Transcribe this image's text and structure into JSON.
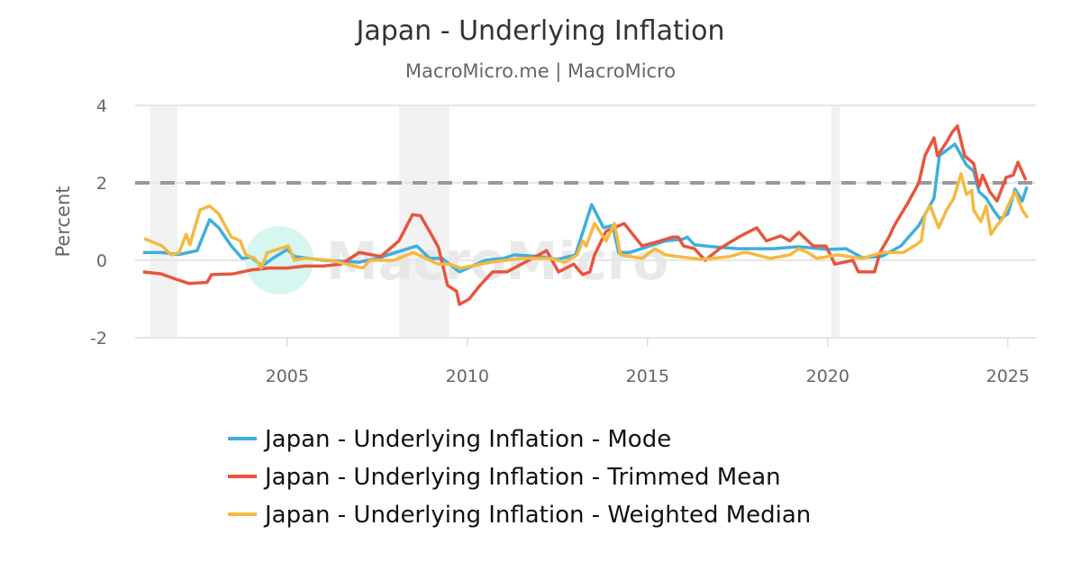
{
  "chart_data": {
    "type": "line",
    "title": "Japan - Underlying Inflation",
    "subtitle": "MacroMicro.me | MacroMicro",
    "ylabel": "Percent",
    "xlabel": "",
    "xlim": [
      2000.78,
      2025.78
    ],
    "ylim": [
      -2,
      4
    ],
    "yticks": [
      4,
      2,
      0,
      -2
    ],
    "xticks": [
      2005,
      2010,
      2015,
      2020,
      2025
    ],
    "grid": "horizontal",
    "reference_line": {
      "value": 2,
      "style": "dashed",
      "color": "#999999"
    },
    "shaded_periods": [
      [
        2001.2,
        2001.95
      ],
      [
        2008.1,
        2009.5
      ],
      [
        2020.1,
        2020.33
      ]
    ],
    "legend_position": "bottom",
    "watermark": "MacroMicro",
    "series": [
      {
        "name": "Japan - Underlying Inflation - Mode",
        "color": "#3eafdd",
        "points": [
          [
            2001.0,
            0.2
          ],
          [
            2001.5,
            0.2
          ],
          [
            2002.0,
            0.15
          ],
          [
            2002.5,
            0.25
          ],
          [
            2002.85,
            1.05
          ],
          [
            2003.1,
            0.84
          ],
          [
            2003.45,
            0.37
          ],
          [
            2003.75,
            0.05
          ],
          [
            2004.0,
            0.08
          ],
          [
            2004.3,
            -0.15
          ],
          [
            2004.6,
            0.05
          ],
          [
            2005.0,
            0.28
          ],
          [
            2005.2,
            0.1
          ],
          [
            2006.0,
            0.0
          ],
          [
            2007.0,
            -0.05
          ],
          [
            2007.5,
            0.05
          ],
          [
            2008.0,
            0.2
          ],
          [
            2008.6,
            0.37
          ],
          [
            2008.95,
            0.05
          ],
          [
            2009.3,
            0.05
          ],
          [
            2009.78,
            -0.3
          ],
          [
            2010.5,
            0.0
          ],
          [
            2011.0,
            0.05
          ],
          [
            2011.3,
            0.14
          ],
          [
            2012.0,
            0.1
          ],
          [
            2012.5,
            0.02
          ],
          [
            2013.0,
            0.14
          ],
          [
            2013.45,
            1.44
          ],
          [
            2013.78,
            0.84
          ],
          [
            2014.03,
            0.9
          ],
          [
            2014.2,
            0.2
          ],
          [
            2014.5,
            0.2
          ],
          [
            2015.0,
            0.35
          ],
          [
            2015.5,
            0.5
          ],
          [
            2016.0,
            0.55
          ],
          [
            2016.1,
            0.6
          ],
          [
            2016.3,
            0.4
          ],
          [
            2016.8,
            0.35
          ],
          [
            2017.5,
            0.3
          ],
          [
            2018.5,
            0.3
          ],
          [
            2019.2,
            0.35
          ],
          [
            2020.0,
            0.28
          ],
          [
            2020.5,
            0.3
          ],
          [
            2020.96,
            0.07
          ],
          [
            2021.5,
            0.1
          ],
          [
            2022.03,
            0.37
          ],
          [
            2022.53,
            0.9
          ],
          [
            2022.95,
            1.6
          ],
          [
            2023.1,
            2.7
          ],
          [
            2023.53,
            3.0
          ],
          [
            2023.85,
            2.46
          ],
          [
            2024.05,
            2.3
          ],
          [
            2024.2,
            1.77
          ],
          [
            2024.4,
            1.6
          ],
          [
            2024.6,
            1.3
          ],
          [
            2024.78,
            1.07
          ],
          [
            2025.0,
            1.2
          ],
          [
            2025.2,
            1.84
          ],
          [
            2025.4,
            1.53
          ],
          [
            2025.53,
            1.9
          ]
        ]
      },
      {
        "name": "Japan - Underlying Inflation - Trimmed Mean",
        "color": "#e8553e",
        "points": [
          [
            2001.0,
            -0.3
          ],
          [
            2001.5,
            -0.35
          ],
          [
            2001.95,
            -0.5
          ],
          [
            2002.28,
            -0.6
          ],
          [
            2002.78,
            -0.57
          ],
          [
            2002.9,
            -0.37
          ],
          [
            2003.5,
            -0.35
          ],
          [
            2004.0,
            -0.25
          ],
          [
            2004.5,
            -0.2
          ],
          [
            2005.0,
            -0.2
          ],
          [
            2005.5,
            -0.15
          ],
          [
            2006.0,
            -0.15
          ],
          [
            2006.5,
            -0.1
          ],
          [
            2007.0,
            0.2
          ],
          [
            2007.6,
            0.1
          ],
          [
            2008.1,
            0.5
          ],
          [
            2008.48,
            1.18
          ],
          [
            2008.7,
            1.15
          ],
          [
            2008.95,
            0.75
          ],
          [
            2009.2,
            0.33
          ],
          [
            2009.45,
            -0.65
          ],
          [
            2009.7,
            -0.8
          ],
          [
            2009.78,
            -1.14
          ],
          [
            2010.05,
            -1.0
          ],
          [
            2010.35,
            -0.65
          ],
          [
            2010.7,
            -0.3
          ],
          [
            2011.1,
            -0.3
          ],
          [
            2011.5,
            -0.1
          ],
          [
            2012.2,
            0.25
          ],
          [
            2012.53,
            -0.3
          ],
          [
            2012.95,
            -0.1
          ],
          [
            2013.2,
            -0.37
          ],
          [
            2013.4,
            -0.3
          ],
          [
            2013.53,
            0.14
          ],
          [
            2013.85,
            0.75
          ],
          [
            2014.35,
            0.95
          ],
          [
            2014.85,
            0.37
          ],
          [
            2015.35,
            0.5
          ],
          [
            2015.7,
            0.6
          ],
          [
            2015.85,
            0.6
          ],
          [
            2016.0,
            0.37
          ],
          [
            2016.3,
            0.3
          ],
          [
            2016.6,
            0.0
          ],
          [
            2017.0,
            0.3
          ],
          [
            2017.53,
            0.6
          ],
          [
            2018.03,
            0.84
          ],
          [
            2018.3,
            0.5
          ],
          [
            2018.7,
            0.63
          ],
          [
            2018.95,
            0.5
          ],
          [
            2019.2,
            0.72
          ],
          [
            2019.6,
            0.37
          ],
          [
            2019.95,
            0.37
          ],
          [
            2020.2,
            -0.1
          ],
          [
            2020.7,
            0.0
          ],
          [
            2020.85,
            -0.3
          ],
          [
            2021.3,
            -0.3
          ],
          [
            2021.45,
            0.2
          ],
          [
            2021.7,
            0.6
          ],
          [
            2021.85,
            0.9
          ],
          [
            2022.2,
            1.44
          ],
          [
            2022.53,
            2.0
          ],
          [
            2022.7,
            2.7
          ],
          [
            2022.95,
            3.16
          ],
          [
            2023.05,
            2.7
          ],
          [
            2023.3,
            3.05
          ],
          [
            2023.45,
            3.3
          ],
          [
            2023.6,
            3.47
          ],
          [
            2023.8,
            2.7
          ],
          [
            2024.05,
            2.5
          ],
          [
            2024.2,
            1.9
          ],
          [
            2024.3,
            2.2
          ],
          [
            2024.5,
            1.77
          ],
          [
            2024.7,
            1.53
          ],
          [
            2024.95,
            2.14
          ],
          [
            2025.15,
            2.2
          ],
          [
            2025.28,
            2.53
          ],
          [
            2025.5,
            2.07
          ]
        ]
      },
      {
        "name": "Japan - Underlying Inflation - Weighted Median",
        "color": "#f5b940",
        "points": [
          [
            2001.03,
            0.56
          ],
          [
            2001.53,
            0.37
          ],
          [
            2001.78,
            0.14
          ],
          [
            2002.0,
            0.2
          ],
          [
            2002.2,
            0.67
          ],
          [
            2002.3,
            0.4
          ],
          [
            2002.58,
            1.3
          ],
          [
            2002.85,
            1.4
          ],
          [
            2003.1,
            1.2
          ],
          [
            2003.45,
            0.6
          ],
          [
            2003.7,
            0.5
          ],
          [
            2003.85,
            0.14
          ],
          [
            2004.1,
            0.05
          ],
          [
            2004.28,
            -0.2
          ],
          [
            2004.45,
            0.2
          ],
          [
            2005.03,
            0.37
          ],
          [
            2005.2,
            0.0
          ],
          [
            2005.5,
            0.05
          ],
          [
            2006.2,
            0.0
          ],
          [
            2007.1,
            -0.2
          ],
          [
            2007.3,
            0.0
          ],
          [
            2007.95,
            0.0
          ],
          [
            2008.5,
            0.2
          ],
          [
            2009.2,
            -0.1
          ],
          [
            2009.5,
            -0.1
          ],
          [
            2009.82,
            -0.2
          ],
          [
            2010.65,
            -0.05
          ],
          [
            2011.5,
            0.05
          ],
          [
            2012.3,
            0.05
          ],
          [
            2012.7,
            -0.05
          ],
          [
            2013.05,
            0.14
          ],
          [
            2013.2,
            0.5
          ],
          [
            2013.3,
            0.37
          ],
          [
            2013.53,
            0.95
          ],
          [
            2013.85,
            0.5
          ],
          [
            2014.08,
            0.95
          ],
          [
            2014.25,
            0.14
          ],
          [
            2014.85,
            0.05
          ],
          [
            2015.2,
            0.3
          ],
          [
            2015.5,
            0.14
          ],
          [
            2016.5,
            0.02
          ],
          [
            2017.3,
            0.1
          ],
          [
            2017.65,
            0.2
          ],
          [
            2017.78,
            0.2
          ],
          [
            2018.4,
            0.05
          ],
          [
            2018.95,
            0.14
          ],
          [
            2019.2,
            0.3
          ],
          [
            2019.45,
            0.2
          ],
          [
            2019.7,
            0.05
          ],
          [
            2020.28,
            0.14
          ],
          [
            2020.95,
            0.05
          ],
          [
            2021.5,
            0.2
          ],
          [
            2022.1,
            0.2
          ],
          [
            2022.45,
            0.4
          ],
          [
            2022.6,
            0.5
          ],
          [
            2022.7,
            1.2
          ],
          [
            2022.85,
            1.4
          ],
          [
            2023.08,
            0.84
          ],
          [
            2023.3,
            1.3
          ],
          [
            2023.5,
            1.6
          ],
          [
            2023.7,
            2.23
          ],
          [
            2023.85,
            1.7
          ],
          [
            2024.0,
            1.8
          ],
          [
            2024.05,
            1.3
          ],
          [
            2024.25,
            1.0
          ],
          [
            2024.4,
            1.4
          ],
          [
            2024.53,
            0.67
          ],
          [
            2024.7,
            0.9
          ],
          [
            2024.85,
            1.07
          ],
          [
            2025.0,
            1.4
          ],
          [
            2025.2,
            1.77
          ],
          [
            2025.4,
            1.3
          ],
          [
            2025.55,
            1.1
          ]
        ]
      }
    ]
  }
}
